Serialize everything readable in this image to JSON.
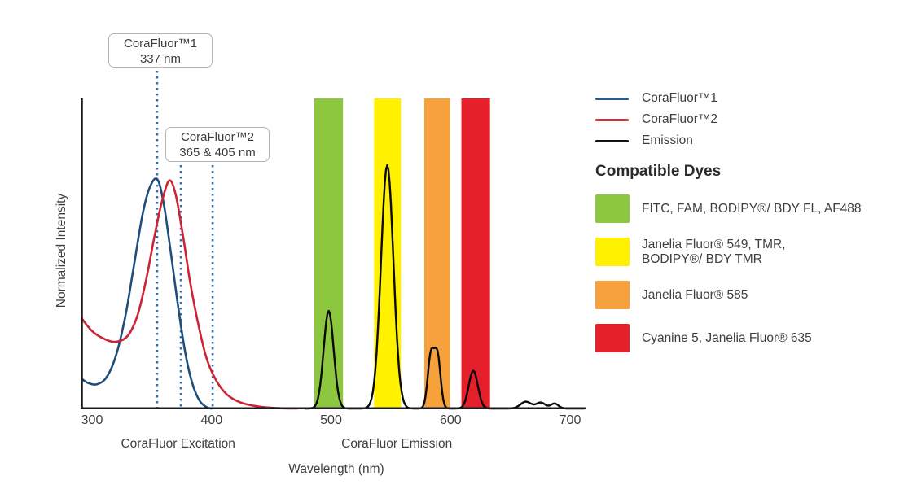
{
  "legend": {
    "items": [
      {
        "label": "CoraFluor™1",
        "color": "#2a5a85"
      },
      {
        "label": "CoraFluor™2",
        "color": "#c53743"
      },
      {
        "label": "Emission",
        "color": "#111111"
      }
    ]
  },
  "compatible_dyes": {
    "heading": "Compatible Dyes",
    "items": [
      {
        "color": "#8dc63f",
        "label": "FITC, FAM, BODIPY®/ BDY FL, AF488"
      },
      {
        "color": "#fff100",
        "label": "Janelia Fluor® 549, TMR,\nBODIPY®/ BDY TMR"
      },
      {
        "color": "#f6a13b",
        "label": "Janelia Fluor® 585"
      },
      {
        "color": "#e6202a",
        "label": "Cyanine 5, Janelia Fluor® 635"
      }
    ]
  },
  "chart_data": {
    "type": "line",
    "xlabel": "Wavelength (nm)",
    "ylabel": "Normalized Intensity",
    "x_ticks": [
      300,
      400,
      500,
      600,
      700
    ],
    "x_range_nm": [
      291,
      715
    ],
    "y_range": [
      0,
      1
    ],
    "grid": false,
    "legend_position": "right",
    "axis_section_labels": [
      {
        "text": "CoraFluor Excitation",
        "nm": 372
      },
      {
        "text": "CoraFluor Emission",
        "nm": 555
      }
    ],
    "annotations": [
      {
        "title": "CoraFluor™1",
        "value": "337 nm"
      },
      {
        "title": "CoraFluor™2",
        "value": "365 & 405 nm"
      }
    ],
    "dashed_markers_nm": [
      354.5,
      374.3,
      400.9
    ],
    "marker_color": "#2f6fad",
    "filter_bands": [
      {
        "dyes": "FITC, FAM, BODIPY®/ BDY FL, AF488",
        "color": "#8dc63f",
        "from_nm": 486,
        "to_nm": 510
      },
      {
        "dyes": "Janelia Fluor® 549, TMR, BODIPY®/ BDY TMR",
        "color": "#fff100",
        "from_nm": 536,
        "to_nm": 558.5
      },
      {
        "dyes": "Janelia Fluor® 585",
        "color": "#f6a13b",
        "from_nm": 578,
        "to_nm": 599.5
      },
      {
        "dyes": "Cyanine 5, Janelia Fluor® 635",
        "color": "#e6202a",
        "from_nm": 609,
        "to_nm": 633
      }
    ],
    "excitation_series": [
      {
        "name": "CoraFluor™1",
        "color": "#1f4e7c",
        "points": [
          [
            291.5,
            0.095
          ],
          [
            297,
            0.082
          ],
          [
            304,
            0.078
          ],
          [
            312,
            0.1
          ],
          [
            320,
            0.17
          ],
          [
            328,
            0.3
          ],
          [
            335,
            0.46
          ],
          [
            342,
            0.62
          ],
          [
            348,
            0.71
          ],
          [
            354.5,
            0.74
          ],
          [
            360,
            0.66
          ],
          [
            366,
            0.5
          ],
          [
            372,
            0.33
          ],
          [
            378,
            0.18
          ],
          [
            384,
            0.08
          ],
          [
            390,
            0.025
          ],
          [
            396,
            0.004
          ],
          [
            400,
            0.0
          ]
        ]
      },
      {
        "name": "CoraFluor™2",
        "color": "#cb2434",
        "points": [
          [
            291.5,
            0.29
          ],
          [
            300,
            0.25
          ],
          [
            310,
            0.225
          ],
          [
            320,
            0.215
          ],
          [
            330,
            0.235
          ],
          [
            338,
            0.3
          ],
          [
            345,
            0.41
          ],
          [
            352,
            0.55
          ],
          [
            358,
            0.66
          ],
          [
            364.5,
            0.735
          ],
          [
            370,
            0.69
          ],
          [
            376,
            0.56
          ],
          [
            382,
            0.41
          ],
          [
            389,
            0.27
          ],
          [
            396,
            0.16
          ],
          [
            404,
            0.09
          ],
          [
            413,
            0.045
          ],
          [
            424,
            0.02
          ],
          [
            438,
            0.007
          ],
          [
            455,
            0.001
          ],
          [
            472,
            0.0
          ]
        ]
      }
    ],
    "emission_series": {
      "name": "Emission",
      "color": "#0a0a0a",
      "peaks": [
        {
          "center_nm": 498,
          "height": 0.315,
          "width_nm": 4.2
        },
        {
          "center_nm": 547,
          "height": 0.785,
          "width_nm": 5.2
        },
        {
          "center_nm": 583.5,
          "height": 0.17,
          "width_nm": 2.6
        },
        {
          "center_nm": 589,
          "height": 0.17,
          "width_nm": 2.6
        },
        {
          "center_nm": 619,
          "height": 0.122,
          "width_nm": 3.8
        },
        {
          "center_nm": 663,
          "height": 0.022,
          "width_nm": 4.5
        },
        {
          "center_nm": 675.5,
          "height": 0.019,
          "width_nm": 3.8
        },
        {
          "center_nm": 687,
          "height": 0.016,
          "width_nm": 3.2
        }
      ]
    }
  }
}
